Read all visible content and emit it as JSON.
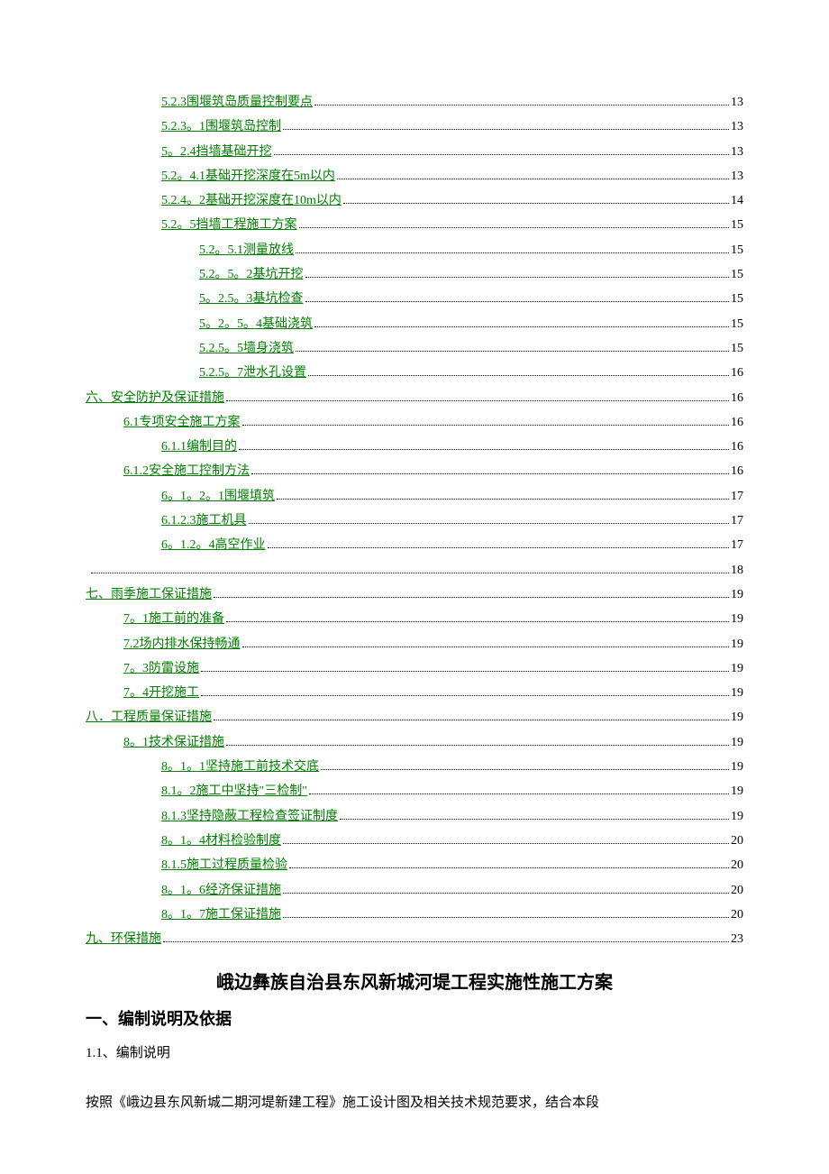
{
  "toc": [
    {
      "indent": 2,
      "label": "5.2.3围堰筑岛质量控制要点",
      "page": "13"
    },
    {
      "indent": 2,
      "label": "5.2.3。1围堰筑岛控制",
      "page": "13"
    },
    {
      "indent": 2,
      "label": "5。2.4挡墙基础开挖",
      "page": "13"
    },
    {
      "indent": 2,
      "label": "5.2。4.1基础开挖深度在5m以内",
      "page": "13"
    },
    {
      "indent": 2,
      "label": "5.2.4。2基础开挖深度在10m以内",
      "page": "14"
    },
    {
      "indent": 2,
      "label": "5.2。5挡墙工程施工方案",
      "page": "15"
    },
    {
      "indent": 3,
      "label": "5.2。5.1测量放线",
      "page": "15"
    },
    {
      "indent": 3,
      "label": "5.2。5。2基坑开挖",
      "page": "15"
    },
    {
      "indent": 3,
      "label": "5。2.5。3基坑检查",
      "page": "15"
    },
    {
      "indent": 3,
      "label": "5。2。5。4基础浇筑",
      "page": "15"
    },
    {
      "indent": 3,
      "label": "5.2.5。5墙身浇筑",
      "page": "15"
    },
    {
      "indent": 3,
      "label": "5.2.5。7泄水孔设置",
      "page": "16"
    },
    {
      "indent": 0,
      "label": "六、安全防护及保证措施",
      "page": "16"
    },
    {
      "indent": 1,
      "label": "6.1专项安全施工方案",
      "page": "16"
    },
    {
      "indent": 2,
      "label": "6.1.1编制目的",
      "page": "16"
    },
    {
      "indent": 1,
      "label": "6.1.2安全施工控制方法",
      "page": "16"
    },
    {
      "indent": 2,
      "label": "6。1。2。1围堰填筑",
      "page": "17"
    },
    {
      "indent": 2,
      "label": "6.1.2.3施工机具",
      "page": "17"
    },
    {
      "indent": 2,
      "label": "6。1.2。4高空作业",
      "page": "17"
    },
    {
      "indent": 0,
      "label": "",
      "page": "18"
    },
    {
      "indent": 0,
      "label": "七、雨季施工保证措施",
      "page": "19"
    },
    {
      "indent": 1,
      "label": "7。1施工前的准备",
      "page": "19"
    },
    {
      "indent": 1,
      "label": "7.2场内排水保持畅通",
      "page": "19"
    },
    {
      "indent": 1,
      "label": "7。3防雷设施",
      "page": "19"
    },
    {
      "indent": 1,
      "label": "7。4开挖施工",
      "page": "19"
    },
    {
      "indent": 0,
      "label": "八．工程质量保证措施",
      "page": "19"
    },
    {
      "indent": 1,
      "label": "8。1技术保证措施",
      "page": "19"
    },
    {
      "indent": 2,
      "label": "8。1。1坚持施工前技术交底",
      "page": "19"
    },
    {
      "indent": 2,
      "label": "8.1。2施工中坚持\"三检制\"",
      "page": "19"
    },
    {
      "indent": 2,
      "label": "8.1.3坚持隐蔽工程检查签证制度",
      "page": "19"
    },
    {
      "indent": 2,
      "label": "8。1。4材料检验制度",
      "page": "20"
    },
    {
      "indent": 2,
      "label": "8.1.5施工过程质量检验",
      "page": "20"
    },
    {
      "indent": 2,
      "label": "8。1。6经济保证措施",
      "page": "20"
    },
    {
      "indent": 2,
      "label": "8。1。7施工保证措施",
      "page": "20"
    },
    {
      "indent": 0,
      "label": "九、环保措施",
      "page": "23"
    }
  ],
  "title": "峨边彝族自治县东风新城河堤工程实施性施工方案",
  "h1": "一、编制说明及依据",
  "h2": "1.1、编制说明",
  "body": "按照《峨边县东风新城二期河堤新建工程》施工设计图及相关技术规范要求，结合本段"
}
